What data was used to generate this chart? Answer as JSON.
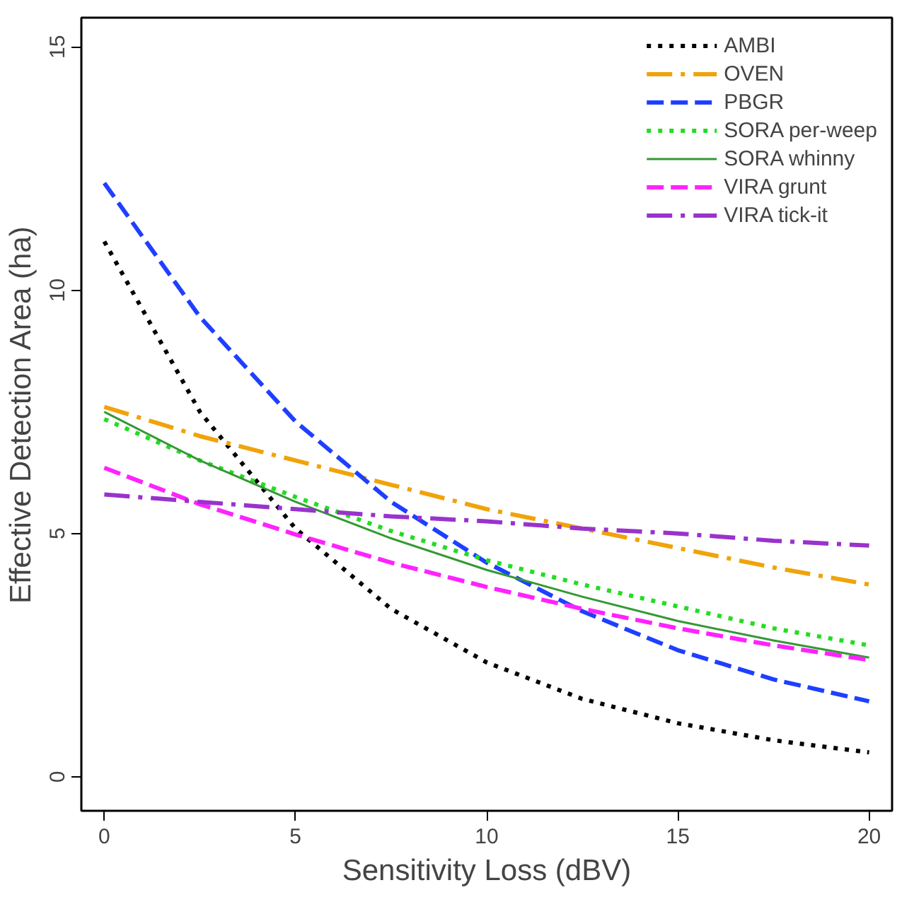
{
  "chart_data": {
    "type": "line",
    "xlabel": "Sensitivity Loss (dBV)",
    "ylabel": "Effective Detection Area (ha)",
    "x": [
      0,
      2.5,
      5,
      7.5,
      10,
      12.5,
      15,
      17.5,
      20
    ],
    "series": [
      {
        "name": "AMBI",
        "color": "#000000",
        "line_style": "dotted",
        "values": [
          11.0,
          7.5,
          5.1,
          3.45,
          2.35,
          1.6,
          1.1,
          0.75,
          0.5
        ]
      },
      {
        "name": "OVEN",
        "color": "#f0a30a",
        "line_style": "dashdot",
        "values": [
          7.6,
          7.0,
          6.5,
          6.0,
          5.5,
          5.1,
          4.7,
          4.3,
          3.95
        ]
      },
      {
        "name": "PBGR",
        "color": "#1f3fff",
        "line_style": "dashed",
        "values": [
          12.2,
          9.45,
          7.3,
          5.65,
          4.4,
          3.4,
          2.6,
          2.0,
          1.55
        ]
      },
      {
        "name": "SORA per-weep",
        "color": "#22dd22",
        "line_style": "dotted",
        "values": [
          7.35,
          6.5,
          5.75,
          5.05,
          4.45,
          3.95,
          3.5,
          3.05,
          2.7
        ]
      },
      {
        "name": "SORA whinny",
        "color": "#339933",
        "line_style": "solid",
        "values": [
          7.5,
          6.5,
          5.65,
          4.9,
          4.25,
          3.7,
          3.2,
          2.8,
          2.45
        ]
      },
      {
        "name": "VIRA grunt",
        "color": "#ff22ff",
        "line_style": "dashed",
        "values": [
          6.35,
          5.6,
          4.98,
          4.4,
          3.9,
          3.45,
          3.05,
          2.7,
          2.4
        ]
      },
      {
        "name": "VIRA tick-it",
        "color": "#9933cc",
        "line_style": "dashdot",
        "values": [
          5.8,
          5.65,
          5.5,
          5.35,
          5.25,
          5.1,
          5.0,
          4.85,
          4.75
        ]
      }
    ],
    "xlim": [
      -0.6,
      20.6
    ],
    "ylim": [
      -0.7,
      15.6
    ],
    "xticks": [
      0,
      5,
      10,
      15,
      20
    ],
    "yticks": [
      0,
      5,
      10,
      15
    ],
    "grid": false,
    "legend": "top right",
    "marker": "none"
  }
}
